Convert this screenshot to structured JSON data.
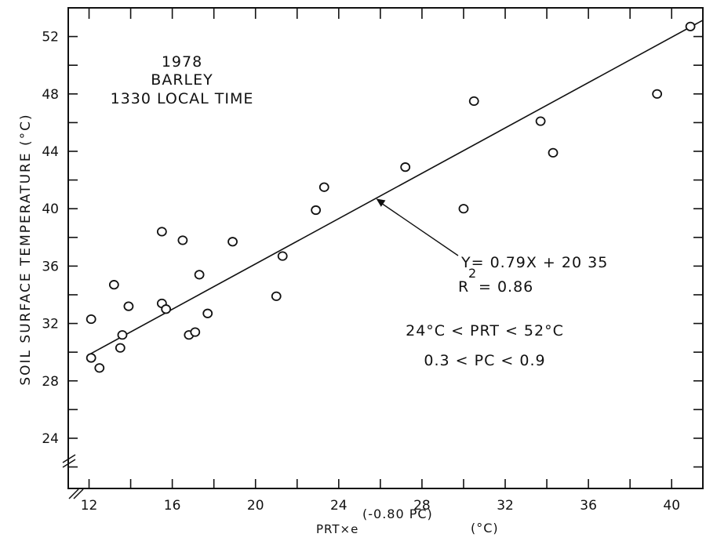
{
  "chart_data": {
    "type": "scatter",
    "title": "",
    "annotation_lines": [
      "1978",
      "BARLEY",
      "1330 LOCAL TIME"
    ],
    "xlabel": "PRT×e",
    "xlabel_superscript": "(-0.80 PC)",
    "xlabel_unit": "(°C)",
    "ylabel": "SOIL SURFACE TEMPERATURE (°C)",
    "xlim": [
      11,
      41.5
    ],
    "ylim": [
      20.5,
      54
    ],
    "x_ticks": [
      12,
      16,
      20,
      24,
      28,
      32,
      36,
      40
    ],
    "x_tick_labels": [
      "12",
      "16",
      "20",
      "24",
      "28",
      "32",
      "36",
      "40"
    ],
    "y_ticks": [
      24,
      28,
      32,
      36,
      40,
      44,
      48,
      52
    ],
    "y_tick_labels": [
      "24",
      "28",
      "32",
      "36",
      "40",
      "44",
      "48",
      "52"
    ],
    "grid": false,
    "points": [
      {
        "x": 12.1,
        "y": 32.3
      },
      {
        "x": 12.1,
        "y": 29.6
      },
      {
        "x": 12.5,
        "y": 28.9
      },
      {
        "x": 13.2,
        "y": 34.7
      },
      {
        "x": 13.5,
        "y": 30.3
      },
      {
        "x": 13.6,
        "y": 31.2
      },
      {
        "x": 13.9,
        "y": 33.2
      },
      {
        "x": 15.5,
        "y": 38.4
      },
      {
        "x": 15.5,
        "y": 33.4
      },
      {
        "x": 15.7,
        "y": 33.0
      },
      {
        "x": 16.5,
        "y": 37.8
      },
      {
        "x": 16.8,
        "y": 31.2
      },
      {
        "x": 17.1,
        "y": 31.4
      },
      {
        "x": 17.3,
        "y": 35.4
      },
      {
        "x": 17.7,
        "y": 32.7
      },
      {
        "x": 18.9,
        "y": 37.7
      },
      {
        "x": 21.0,
        "y": 33.9
      },
      {
        "x": 21.3,
        "y": 36.7
      },
      {
        "x": 22.9,
        "y": 39.9
      },
      {
        "x": 23.3,
        "y": 41.5
      },
      {
        "x": 27.2,
        "y": 42.9
      },
      {
        "x": 30.0,
        "y": 40.0
      },
      {
        "x": 30.5,
        "y": 47.5
      },
      {
        "x": 33.7,
        "y": 46.1
      },
      {
        "x": 34.3,
        "y": 43.9
      },
      {
        "x": 39.3,
        "y": 48.0
      },
      {
        "x": 40.9,
        "y": 52.7
      }
    ],
    "regression": {
      "x_range": [
        12,
        41.5
      ],
      "slope": 0.79,
      "intercept": 20.35,
      "equation_label": "Y= 0.79X + 20 35",
      "r2_label_prefix": "R",
      "r2_label_exponent": "2",
      "r2_label_value": "= 0.86",
      "arrow_target": {
        "x": 25.8,
        "y": 40.7
      }
    },
    "condition_lines": [
      "24°C < PRT < 52°C",
      "0.3 < PC < 0.9"
    ],
    "axis_break": true
  }
}
